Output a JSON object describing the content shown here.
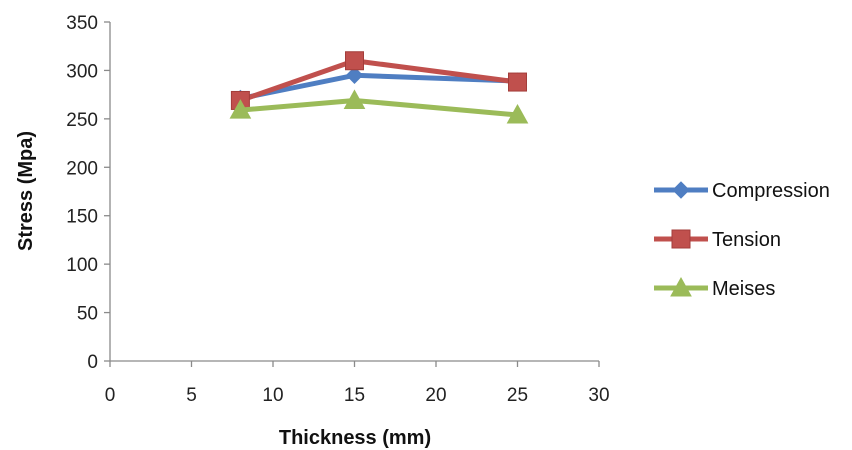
{
  "chart_data": {
    "type": "line",
    "title": "",
    "xlabel": "Thickness (mm)",
    "ylabel": "Stress (Mpa)",
    "xlim": [
      0,
      30
    ],
    "ylim": [
      0,
      350
    ],
    "x_ticks": [
      "0",
      "5",
      "10",
      "15",
      "20",
      "25",
      "30"
    ],
    "y_ticks": [
      "0",
      "50",
      "100",
      "150",
      "200",
      "250",
      "300",
      "350"
    ],
    "x": [
      8,
      15,
      25
    ],
    "grid": false,
    "legend_position": "right",
    "series": [
      {
        "name": "Compression",
        "values": [
          271,
          295,
          289
        ],
        "color": "#4F7EC2",
        "marker": "diamond"
      },
      {
        "name": "Tension",
        "values": [
          269,
          310,
          288
        ],
        "color": "#C0504D",
        "marker": "square"
      },
      {
        "name": "Meises",
        "values": [
          259,
          269,
          254
        ],
        "color": "#9BBB59",
        "marker": "triangle"
      }
    ]
  }
}
